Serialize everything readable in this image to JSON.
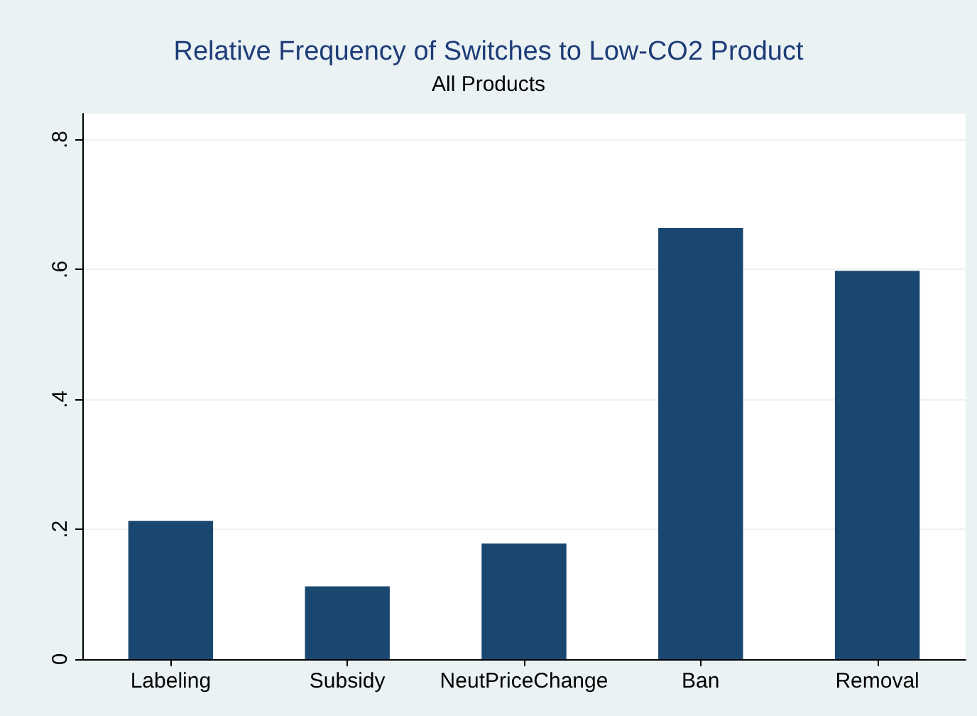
{
  "chart_data": {
    "type": "bar",
    "title": "Relative Frequency of Switches to Low-CO2 Product",
    "subtitle": "All Products",
    "categories": [
      "Labeling",
      "Subsidy",
      "NeutPriceChange",
      "Ban",
      "Removal"
    ],
    "values": [
      0.213,
      0.112,
      0.178,
      0.664,
      0.598
    ],
    "color": "#1a476f",
    "ylim": [
      0,
      0.84
    ],
    "yticks": [
      {
        "value": 0,
        "label": "0"
      },
      {
        "value": 0.2,
        "label": ".2"
      },
      {
        "value": 0.4,
        "label": ".4"
      },
      {
        "value": 0.6,
        "label": ".6"
      },
      {
        "value": 0.8,
        "label": ".8"
      }
    ],
    "grid": "y"
  }
}
